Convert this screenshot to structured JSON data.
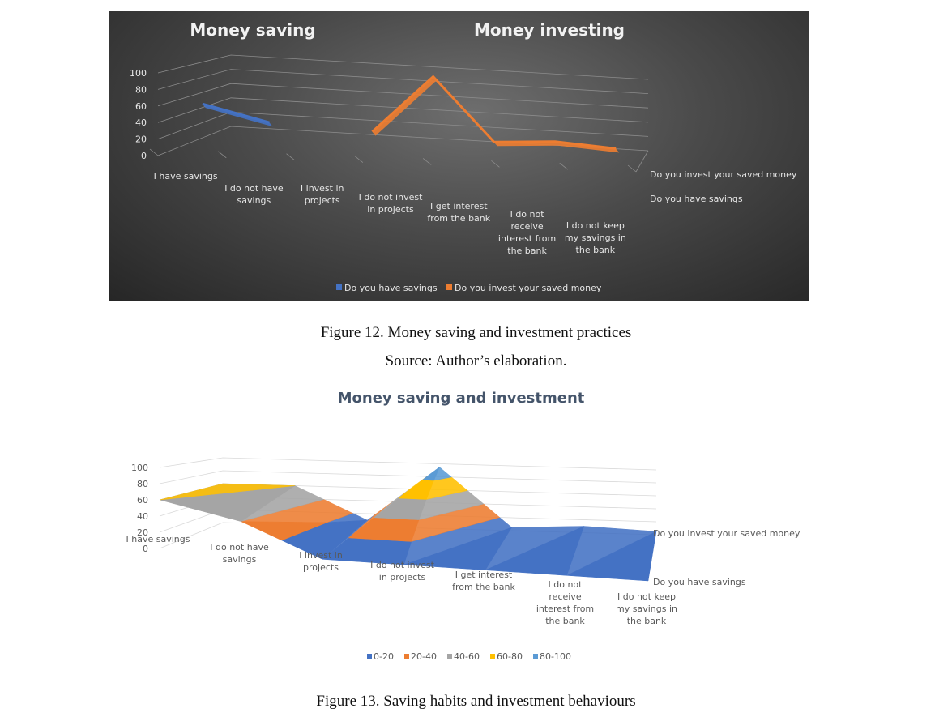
{
  "chart_data": [
    {
      "type": "line",
      "title": "",
      "panel_labels": [
        "Money saving",
        "Money investing"
      ],
      "categories": [
        "I have savings",
        "I do not have savings",
        "I invest in projects",
        "I do not invest in projects",
        "I get interest from the bank",
        "I do not receive interest from the bank",
        "I do not keep my savings in the bank"
      ],
      "series": [
        {
          "name": "Do you have savings",
          "values": [
            60,
            40,
            null,
            null,
            null,
            null,
            null
          ],
          "color": "#4472c4"
        },
        {
          "name": "Do you invest your saved money",
          "values": [
            null,
            null,
            10,
            90,
            5,
            10,
            5
          ],
          "color": "#ed7d31"
        }
      ],
      "depth_labels": [
        "Do you invest your saved money",
        "Do you have savings"
      ],
      "yticks": [
        0,
        20,
        40,
        60,
        80,
        100
      ],
      "ylim": [
        0,
        100
      ],
      "legend": "bottom",
      "grid": true,
      "theme": "dark"
    },
    {
      "type": "surface",
      "title": "Money saving and investment",
      "categories": [
        "I have savings",
        "I do not have savings",
        "I invest in projects",
        "I do not invest in projects",
        "I get interest from the bank",
        "I do not receive interest from the bank",
        "I do not keep my savings in the bank"
      ],
      "series": [
        {
          "name": "Do you have savings",
          "values": [
            60,
            40,
            0,
            0,
            0,
            0,
            0
          ]
        },
        {
          "name": "Do you invest your saved money",
          "values": [
            60,
            60,
            10,
            95,
            5,
            10,
            5
          ]
        }
      ],
      "depth_labels": [
        "Do you invest your saved money",
        "Do you have savings"
      ],
      "bands": [
        {
          "name": "0-20",
          "color": "#4472c4"
        },
        {
          "name": "20-40",
          "color": "#ed7d31"
        },
        {
          "name": "40-60",
          "color": "#a5a5a5"
        },
        {
          "name": "60-80",
          "color": "#ffc000"
        },
        {
          "name": "80-100",
          "color": "#5b9bd5"
        }
      ],
      "yticks": [
        0,
        20,
        40,
        60,
        80,
        100
      ],
      "ylim": [
        0,
        100
      ],
      "legend": "bottom",
      "grid": true
    }
  ],
  "captions": {
    "fig12": "Figure 12. Money saving and investment practices",
    "source": "Source: Author’s elaboration.",
    "fig13": "Figure 13. Saving habits and investment behaviours"
  }
}
